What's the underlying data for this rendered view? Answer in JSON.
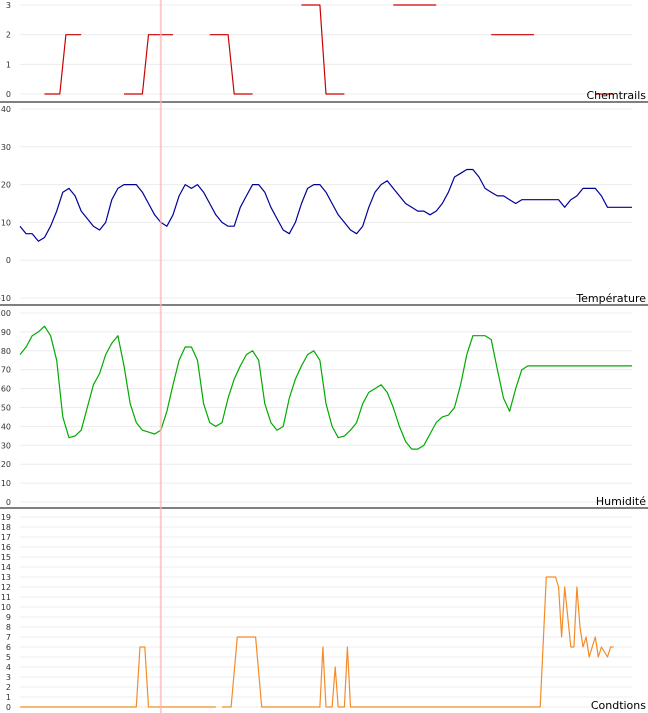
{
  "cursor_x": 23,
  "chart_data": [
    {
      "type": "line",
      "title": "Chemtrails",
      "color": "#cc0000",
      "ylim": [
        0,
        3
      ],
      "y_ticks": [
        0,
        1,
        2,
        3
      ],
      "xlim": [
        0,
        100
      ],
      "segments": [
        [
          [
            4,
            0
          ],
          [
            6.5,
            0
          ],
          [
            7.5,
            2
          ],
          [
            10,
            2
          ]
        ],
        [
          [
            17,
            0
          ],
          [
            20,
            0
          ],
          [
            21,
            2
          ],
          [
            25,
            2
          ]
        ],
        [
          [
            31,
            2
          ],
          [
            34,
            2
          ],
          [
            35,
            0
          ],
          [
            38,
            0
          ]
        ],
        [
          [
            46,
            3
          ],
          [
            49,
            3
          ],
          [
            50,
            0
          ],
          [
            53,
            0
          ]
        ],
        [
          [
            61,
            3
          ],
          [
            68,
            3
          ]
        ],
        [
          [
            77,
            2
          ],
          [
            84,
            2
          ]
        ],
        [
          [
            94,
            0
          ],
          [
            97,
            0
          ]
        ]
      ]
    },
    {
      "type": "line",
      "title": "Température",
      "color": "#000099",
      "ylim": [
        -10,
        40
      ],
      "y_ticks": [
        -10,
        0,
        10,
        20,
        30,
        40
      ],
      "xlim": [
        0,
        100
      ],
      "series": [
        {
          "x": [
            0,
            1,
            2,
            3,
            4,
            5,
            6,
            7,
            8,
            9,
            10,
            11,
            12,
            13,
            14,
            15,
            16,
            17,
            18,
            19,
            20,
            21,
            22,
            23,
            24,
            25,
            26,
            27,
            28,
            29,
            30,
            31,
            32,
            33,
            34,
            35,
            36,
            37,
            38,
            39,
            40,
            41,
            42,
            43,
            44,
            45,
            46,
            47,
            48,
            49,
            50,
            51,
            52,
            53,
            54,
            55,
            56,
            57,
            58,
            59,
            60,
            61,
            62,
            63,
            64,
            65,
            66,
            67,
            68,
            69,
            70,
            71,
            72,
            73,
            74,
            75,
            76,
            77,
            78,
            79,
            80,
            81,
            82,
            83,
            84,
            85,
            86,
            87,
            88,
            89,
            90,
            91,
            92,
            93,
            94,
            95,
            96,
            97,
            98,
            99,
            100
          ],
          "values": [
            9,
            7,
            7,
            5,
            6,
            9,
            13,
            18,
            19,
            17,
            13,
            11,
            9,
            8,
            10,
            16,
            19,
            20,
            20,
            20,
            18,
            15,
            12,
            10,
            9,
            12,
            17,
            20,
            19,
            20,
            18,
            15,
            12,
            10,
            9,
            9,
            14,
            17,
            20,
            20,
            18,
            14,
            11,
            8,
            7,
            10,
            15,
            19,
            20,
            20,
            18,
            15,
            12,
            10,
            8,
            7,
            9,
            14,
            18,
            20,
            21,
            19,
            17,
            15,
            14,
            13,
            13,
            12,
            13,
            15,
            18,
            22,
            23,
            24,
            24,
            22,
            19,
            18,
            17,
            17,
            16,
            15,
            16,
            16,
            16,
            16,
            16,
            16,
            16,
            14,
            16,
            17,
            19,
            19,
            19,
            17,
            14,
            14,
            14,
            14,
            14
          ]
        }
      ]
    },
    {
      "type": "line",
      "title": "Humidité",
      "color": "#00aa00",
      "ylim": [
        0,
        100
      ],
      "y_ticks": [
        0,
        10,
        20,
        30,
        40,
        50,
        60,
        70,
        80,
        90,
        100
      ],
      "xlim": [
        0,
        100
      ],
      "series": [
        {
          "x": [
            0,
            1,
            2,
            3,
            4,
            5,
            6,
            7,
            8,
            9,
            10,
            11,
            12,
            13,
            14,
            15,
            16,
            17,
            18,
            19,
            20,
            21,
            22,
            23,
            24,
            25,
            26,
            27,
            28,
            29,
            30,
            31,
            32,
            33,
            34,
            35,
            36,
            37,
            38,
            39,
            40,
            41,
            42,
            43,
            44,
            45,
            46,
            47,
            48,
            49,
            50,
            51,
            52,
            53,
            54,
            55,
            56,
            57,
            58,
            59,
            60,
            61,
            62,
            63,
            64,
            65,
            66,
            67,
            68,
            69,
            70,
            71,
            72,
            73,
            74,
            75,
            76,
            77,
            78,
            79,
            80,
            81,
            82,
            83,
            84,
            85,
            86,
            87,
            88,
            89,
            90,
            91,
            92,
            93,
            94,
            95,
            96,
            97,
            98,
            99,
            100
          ],
          "values": [
            78,
            82,
            88,
            90,
            93,
            88,
            75,
            45,
            34,
            35,
            38,
            50,
            62,
            68,
            78,
            84,
            88,
            72,
            52,
            42,
            38,
            37,
            36,
            38,
            48,
            62,
            75,
            82,
            82,
            75,
            52,
            42,
            40,
            42,
            55,
            65,
            72,
            78,
            80,
            75,
            52,
            42,
            38,
            40,
            55,
            65,
            72,
            78,
            80,
            75,
            52,
            40,
            34,
            35,
            38,
            42,
            52,
            58,
            60,
            62,
            58,
            50,
            40,
            32,
            28,
            28,
            30,
            36,
            42,
            45,
            46,
            50,
            62,
            78,
            88,
            88,
            88,
            86,
            70,
            55,
            48,
            60,
            70,
            72,
            72,
            72,
            72,
            72,
            72,
            72,
            72,
            72,
            72,
            72,
            72,
            72,
            72,
            72,
            72,
            72,
            72
          ]
        }
      ]
    },
    {
      "type": "line",
      "title": "Condtions",
      "color": "#f28c28",
      "ylim": [
        0,
        19
      ],
      "y_ticks": [
        0,
        1,
        2,
        3,
        4,
        5,
        6,
        7,
        8,
        9,
        10,
        11,
        12,
        13,
        14,
        15,
        16,
        17,
        18,
        19
      ],
      "xlim": [
        0,
        100
      ],
      "segments": [
        [
          [
            0,
            0
          ],
          [
            19,
            0
          ],
          [
            19.6,
            6
          ],
          [
            20.4,
            6
          ],
          [
            21,
            0
          ],
          [
            32,
            0
          ]
        ],
        [
          [
            33,
            0
          ],
          [
            34.5,
            0
          ],
          [
            35.5,
            7
          ],
          [
            38.5,
            7
          ],
          [
            39.5,
            0
          ],
          [
            49,
            0
          ],
          [
            49.5,
            6
          ],
          [
            50,
            0
          ],
          [
            51,
            0
          ],
          [
            51.5,
            4
          ],
          [
            52,
            0
          ],
          [
            53,
            0
          ],
          [
            53.5,
            6
          ],
          [
            54,
            0
          ],
          [
            85,
            0
          ],
          [
            86,
            13
          ],
          [
            87.5,
            13
          ],
          [
            88,
            12
          ],
          [
            88.5,
            7
          ],
          [
            89,
            12
          ],
          [
            90,
            6
          ],
          [
            90.5,
            6
          ],
          [
            91,
            12
          ],
          [
            91.5,
            8
          ],
          [
            92,
            6
          ],
          [
            92.5,
            7
          ],
          [
            93,
            5
          ],
          [
            93.5,
            6
          ],
          [
            94,
            7
          ],
          [
            94.5,
            5
          ],
          [
            95,
            6
          ],
          [
            96,
            5
          ],
          [
            96.5,
            6
          ],
          [
            97,
            6
          ]
        ]
      ]
    }
  ]
}
